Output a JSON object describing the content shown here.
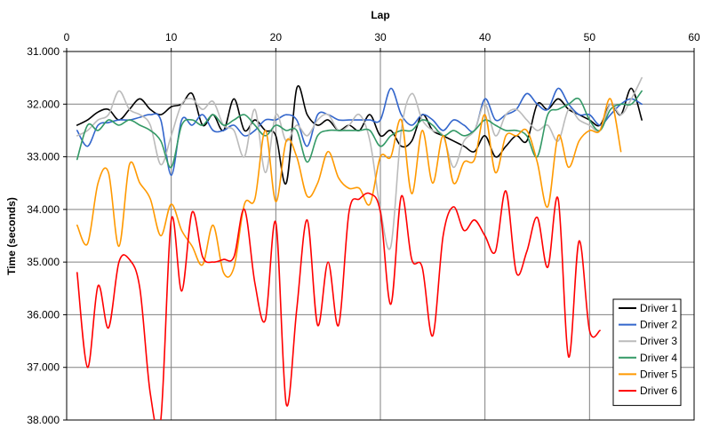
{
  "chart_data": {
    "type": "line",
    "title": "",
    "xlabel": "Lap",
    "ylabel": "Time (seconds)",
    "xlim": [
      0,
      60
    ],
    "ylim": [
      31.0,
      38.0
    ],
    "y_inverted": true,
    "x_axis_position": "top",
    "x_ticks": [
      0,
      10,
      20,
      30,
      40,
      50,
      60
    ],
    "x_tick_labels": [
      "0",
      "10",
      "20",
      "30",
      "40",
      "50",
      "60"
    ],
    "y_ticks": [
      31,
      32,
      33,
      34,
      35,
      36,
      37,
      38
    ],
    "y_tick_labels": [
      "31.000",
      "32.000",
      "33.000",
      "34.000",
      "35.000",
      "36.000",
      "37.000",
      "38.000"
    ],
    "grid": true,
    "legend_position": "bottom-right",
    "series": [
      {
        "name": "Driver 1",
        "color": "#000000",
        "x": [
          1,
          2,
          3,
          4,
          5,
          6,
          7,
          8,
          9,
          10,
          11,
          12,
          13,
          14,
          15,
          16,
          17,
          18,
          19,
          20,
          21,
          22,
          23,
          24,
          25,
          26,
          27,
          28,
          29,
          30,
          31,
          32,
          33,
          34,
          35,
          36,
          37,
          38,
          39,
          40,
          41,
          42,
          43,
          44,
          45,
          46,
          47,
          48,
          49,
          50,
          51,
          52,
          53,
          54,
          55
        ],
        "values": [
          32.4,
          32.3,
          32.15,
          32.1,
          32.3,
          32.1,
          31.9,
          32.1,
          32.2,
          32.05,
          32.0,
          31.8,
          32.4,
          32.2,
          32.5,
          31.9,
          32.5,
          32.3,
          32.5,
          32.6,
          33.5,
          31.7,
          32.2,
          32.4,
          32.3,
          32.5,
          32.4,
          32.5,
          32.2,
          32.6,
          32.5,
          32.8,
          32.7,
          32.2,
          32.5,
          32.6,
          32.7,
          32.8,
          32.9,
          32.6,
          33.0,
          32.8,
          32.6,
          32.7,
          32.0,
          32.1,
          31.9,
          32.1,
          32.2,
          32.3,
          32.4,
          32.0,
          32.2,
          31.7,
          32.3
        ]
      },
      {
        "name": "Driver 2",
        "color": "#3366cc",
        "x": [
          1,
          2,
          3,
          4,
          5,
          6,
          7,
          8,
          9,
          10,
          11,
          12,
          13,
          14,
          15,
          16,
          17,
          18,
          19,
          20,
          21,
          22,
          23,
          24,
          25,
          26,
          27,
          28,
          29,
          30,
          31,
          32,
          33,
          34,
          35,
          36,
          37,
          38,
          39,
          40,
          41,
          42,
          43,
          44,
          45,
          46,
          47,
          48,
          49,
          50,
          51,
          52,
          53,
          54,
          55
        ],
        "values": [
          32.5,
          32.8,
          32.4,
          32.35,
          32.3,
          32.3,
          32.25,
          32.2,
          32.3,
          33.35,
          32.3,
          32.4,
          32.2,
          32.5,
          32.5,
          32.4,
          32.6,
          32.5,
          32.3,
          32.3,
          32.2,
          32.3,
          32.8,
          32.2,
          32.2,
          32.3,
          32.3,
          32.3,
          32.3,
          32.3,
          31.7,
          32.2,
          32.4,
          32.2,
          32.3,
          32.5,
          32.3,
          32.4,
          32.5,
          31.9,
          32.3,
          32.2,
          32.1,
          31.8,
          32.0,
          32.1,
          31.7,
          32.0,
          32.2,
          32.2,
          32.4,
          32.2,
          32.0,
          31.9,
          32.0
        ]
      },
      {
        "name": "Driver 3",
        "color": "#bbbbbb",
        "x": [
          1,
          2,
          3,
          4,
          5,
          6,
          7,
          8,
          9,
          10,
          11,
          12,
          13,
          14,
          15,
          16,
          17,
          18,
          19,
          20,
          21,
          22,
          23,
          24,
          25,
          26,
          27,
          28,
          29,
          30,
          31,
          32,
          33,
          34,
          35,
          36,
          37,
          38,
          39,
          40,
          41,
          42,
          43,
          44,
          45,
          46,
          47,
          48,
          49,
          50,
          51,
          52,
          53,
          54,
          55
        ],
        "values": [
          32.6,
          32.5,
          32.3,
          32.2,
          31.75,
          32.1,
          32.2,
          32.4,
          33.15,
          32.6,
          32.0,
          31.9,
          32.1,
          31.95,
          32.4,
          32.5,
          33.0,
          32.1,
          33.3,
          32.2,
          32.7,
          32.4,
          32.6,
          32.3,
          32.2,
          32.5,
          32.4,
          32.2,
          32.7,
          34.0,
          34.7,
          32.5,
          31.8,
          32.3,
          32.5,
          32.6,
          33.2,
          32.7,
          32.5,
          32.0,
          32.6,
          32.2,
          32.1,
          32.3,
          32.5,
          32.4,
          32.7,
          32.1,
          32.3,
          32.4,
          32.5,
          32.0,
          32.2,
          31.9,
          31.5
        ]
      },
      {
        "name": "Driver 4",
        "color": "#339966",
        "x": [
          1,
          2,
          3,
          4,
          5,
          6,
          7,
          8,
          9,
          10,
          11,
          12,
          13,
          14,
          15,
          16,
          17,
          18,
          19,
          20,
          21,
          22,
          23,
          24,
          25,
          26,
          27,
          28,
          29,
          30,
          31,
          32,
          33,
          34,
          35,
          36,
          37,
          38,
          39,
          40,
          41,
          42,
          43,
          44,
          45,
          46,
          47,
          48,
          49,
          50,
          51,
          52,
          53,
          54,
          55
        ],
        "values": [
          33.05,
          32.4,
          32.5,
          32.3,
          32.4,
          32.3,
          32.4,
          32.5,
          32.7,
          33.2,
          32.4,
          32.3,
          32.4,
          32.2,
          32.4,
          32.3,
          32.2,
          32.4,
          32.6,
          32.4,
          32.5,
          32.5,
          33.1,
          32.6,
          32.5,
          32.5,
          32.5,
          32.5,
          32.5,
          32.8,
          32.6,
          32.5,
          32.5,
          32.3,
          32.4,
          32.6,
          32.5,
          32.6,
          32.5,
          32.3,
          32.4,
          32.5,
          32.5,
          32.6,
          33.0,
          32.2,
          32.1,
          32.0,
          31.9,
          32.3,
          32.5,
          32.1,
          32.0,
          32.0,
          31.75
        ]
      },
      {
        "name": "Driver 5",
        "color": "#ff9900",
        "x": [
          1,
          2,
          3,
          4,
          5,
          6,
          7,
          8,
          9,
          10,
          11,
          12,
          13,
          14,
          15,
          16,
          17,
          18,
          19,
          20,
          21,
          22,
          23,
          24,
          25,
          26,
          27,
          28,
          29,
          30,
          31,
          32,
          33,
          34,
          35,
          36,
          37,
          38,
          39,
          40,
          41,
          42,
          43,
          44,
          45,
          46,
          47,
          48,
          49,
          50,
          51,
          52,
          53
        ],
        "values": [
          34.3,
          34.65,
          33.5,
          33.3,
          34.7,
          33.15,
          33.5,
          33.8,
          34.5,
          33.9,
          34.4,
          34.7,
          35.05,
          34.3,
          35.2,
          35.1,
          33.9,
          33.8,
          32.5,
          33.85,
          32.7,
          33.0,
          33.75,
          33.5,
          32.9,
          33.4,
          33.6,
          33.6,
          33.9,
          33.0,
          33.0,
          32.3,
          33.7,
          32.5,
          33.5,
          32.6,
          33.5,
          33.1,
          33.05,
          32.2,
          33.3,
          32.6,
          32.6,
          32.5,
          33.1,
          33.95,
          32.6,
          33.2,
          32.7,
          32.5,
          32.5,
          31.9,
          32.9
        ]
      },
      {
        "name": "Driver 6",
        "color": "#ff0000",
        "x": [
          1,
          2,
          3,
          4,
          5,
          6,
          7,
          8,
          9,
          10,
          11,
          12,
          13,
          14,
          15,
          16,
          17,
          18,
          19,
          20,
          21,
          22,
          23,
          24,
          25,
          26,
          27,
          28,
          29,
          30,
          31,
          32,
          33,
          34,
          35,
          36,
          37,
          38,
          39,
          40,
          41,
          42,
          43,
          44,
          45,
          46,
          47,
          48,
          49,
          50,
          51
        ],
        "values": [
          35.2,
          37.0,
          35.45,
          36.25,
          35.0,
          34.95,
          35.5,
          37.5,
          38.0,
          34.2,
          35.55,
          34.05,
          34.9,
          35.0,
          34.95,
          34.9,
          34.0,
          35.4,
          36.1,
          34.25,
          37.7,
          35.9,
          34.2,
          36.2,
          35.0,
          36.2,
          34.05,
          33.8,
          33.7,
          34.05,
          35.8,
          33.75,
          34.95,
          35.1,
          36.4,
          34.5,
          33.95,
          34.4,
          34.2,
          34.5,
          34.8,
          33.65,
          35.2,
          34.8,
          34.15,
          35.1,
          33.8,
          36.8,
          34.6,
          36.3,
          36.3
        ]
      }
    ]
  }
}
